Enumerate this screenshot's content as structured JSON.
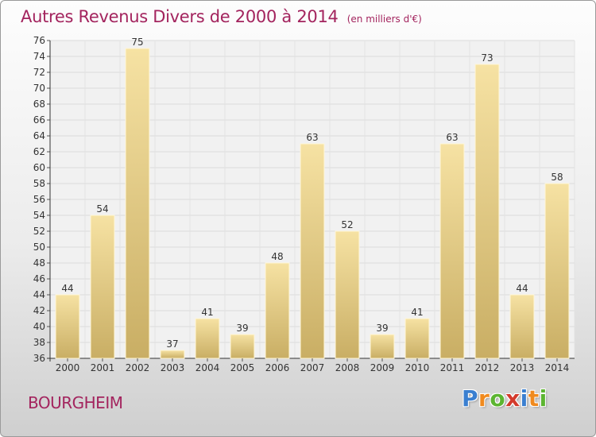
{
  "header": {
    "title": "Autres Revenus Divers de 2000 à 2014",
    "unit": "(en milliers d'€)"
  },
  "footer": {
    "commune": "BOURGHEIM",
    "logo_letters": [
      "P",
      "r",
      "o",
      "x",
      "i",
      "t",
      "i"
    ],
    "logo_colors": [
      "#3a7fd0",
      "#f08a1e",
      "#5cb531",
      "#d33a2c",
      "#3a7fd0",
      "#f08a1e",
      "#5cb531"
    ]
  },
  "colors": {
    "title": "#a3245e",
    "bar_light": "#f6e2a3",
    "bar_dark": "#c9ae64",
    "axis_text": "#333333"
  },
  "chart_data": {
    "type": "bar",
    "title": "Autres Revenus Divers de 2000 à 2014",
    "subtitle": "(en milliers d'€)",
    "xlabel": "",
    "ylabel": "",
    "categories": [
      "2000",
      "2001",
      "2002",
      "2003",
      "2004",
      "2005",
      "2006",
      "2007",
      "2008",
      "2009",
      "2010",
      "2011",
      "2012",
      "2013",
      "2014"
    ],
    "values": [
      44,
      54,
      75,
      37,
      41,
      39,
      48,
      63,
      52,
      39,
      41,
      63,
      73,
      44,
      58
    ],
    "ylim": [
      36,
      76
    ],
    "ytick_step": 2,
    "grid": true,
    "legend": "none"
  }
}
